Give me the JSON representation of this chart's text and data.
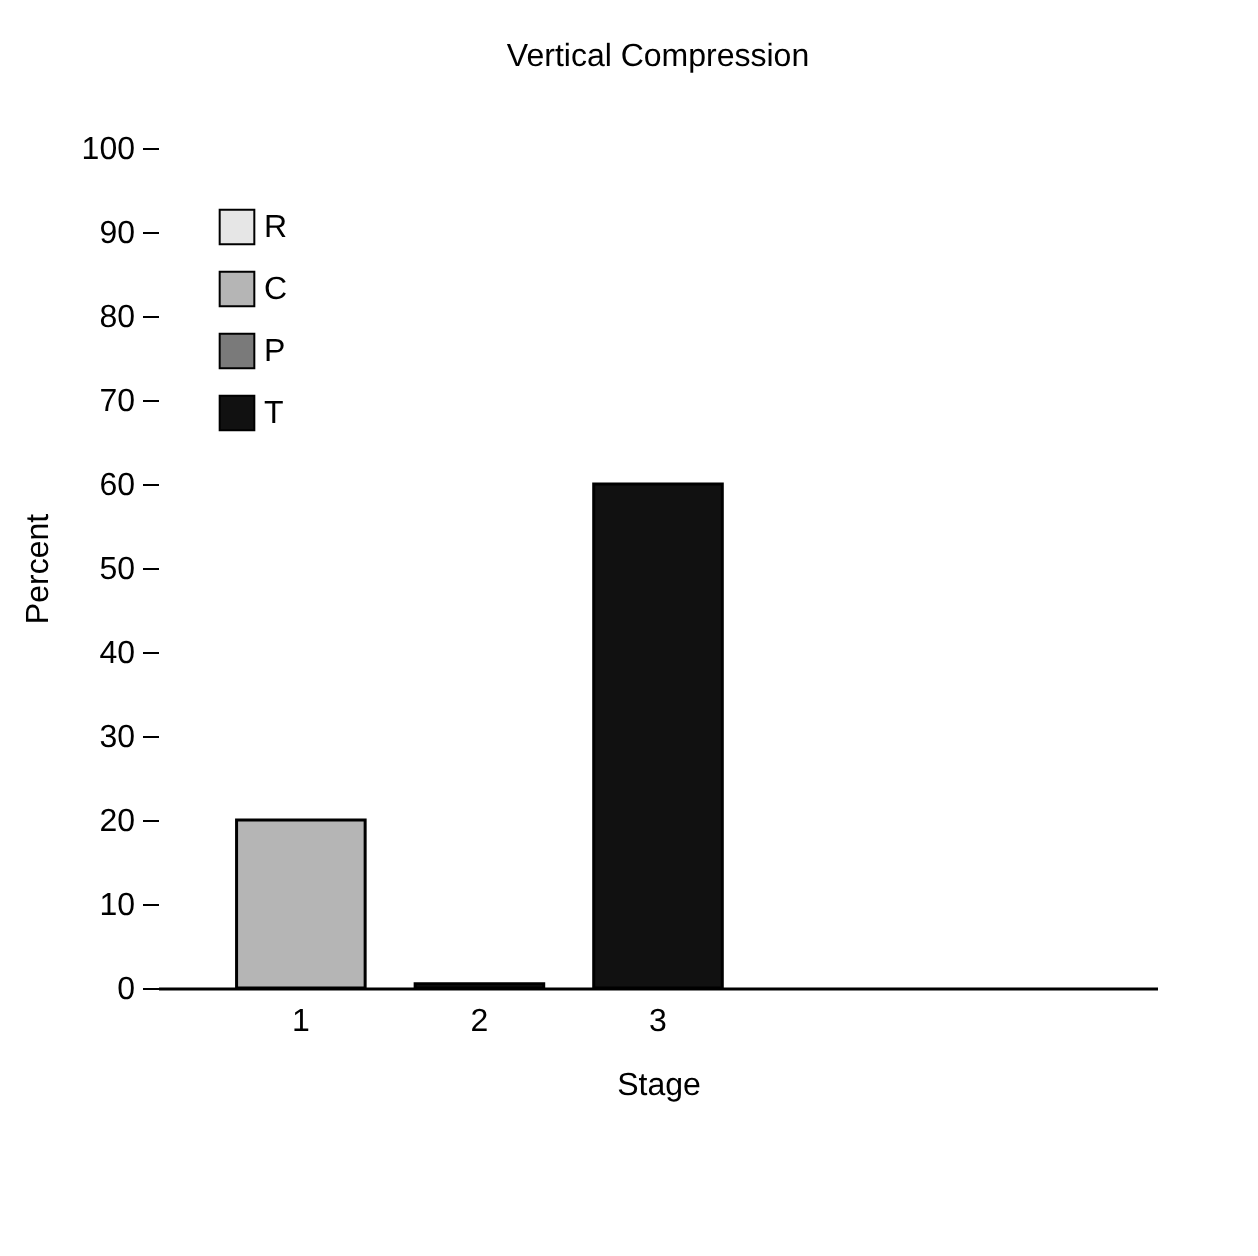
{
  "chart_data": {
    "type": "bar",
    "title": "Vertical Compression",
    "xlabel": "Stage",
    "ylabel": "Percent",
    "categories": [
      "1",
      "2",
      "3",
      null,
      null
    ],
    "series": [
      {
        "name": "R",
        "color": "#e6e6e6",
        "values": [
          null,
          null,
          null,
          null,
          null
        ]
      },
      {
        "name": "C",
        "color": "#b5b5b5",
        "values": [
          20,
          null,
          null,
          null,
          null
        ]
      },
      {
        "name": "P",
        "color": "#7a7a7a",
        "values": [
          null,
          null,
          null,
          null,
          null
        ]
      },
      {
        "name": "T",
        "color": "#111111",
        "values": [
          null,
          0.5,
          60,
          null,
          null
        ]
      }
    ],
    "ylim": [
      0,
      100
    ],
    "yticks": [
      0,
      10,
      20,
      30,
      40,
      50,
      60,
      70,
      80,
      90,
      100
    ],
    "grid": false,
    "legend": "top left"
  }
}
